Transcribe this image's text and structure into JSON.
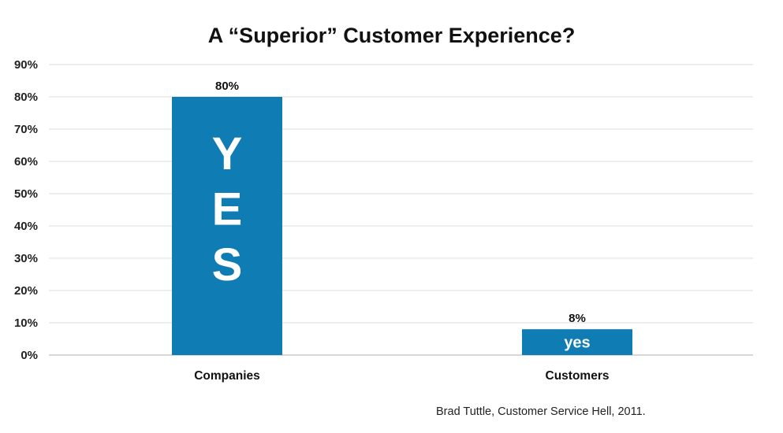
{
  "chart_data": {
    "type": "bar",
    "title": "A “Superior” Customer Experience?",
    "categories": [
      "Companies",
      "Customers"
    ],
    "values": [
      80,
      8
    ],
    "value_labels": [
      "80%",
      "8%"
    ],
    "bar_text": [
      "YES",
      "yes"
    ],
    "xlabel": "",
    "ylabel": "",
    "ylim": [
      0,
      90
    ],
    "yticks": [
      0,
      10,
      20,
      30,
      40,
      50,
      60,
      70,
      80,
      90
    ],
    "ytick_labels": [
      "0%",
      "10%",
      "20%",
      "30%",
      "40%",
      "50%",
      "60%",
      "70%",
      "80%",
      "90%"
    ],
    "grid": true,
    "bar_color": "#0f7cb3",
    "grid_color": "#dcdcdc"
  },
  "source_note": "Brad Tuttle, Customer Service Hell, 2011."
}
